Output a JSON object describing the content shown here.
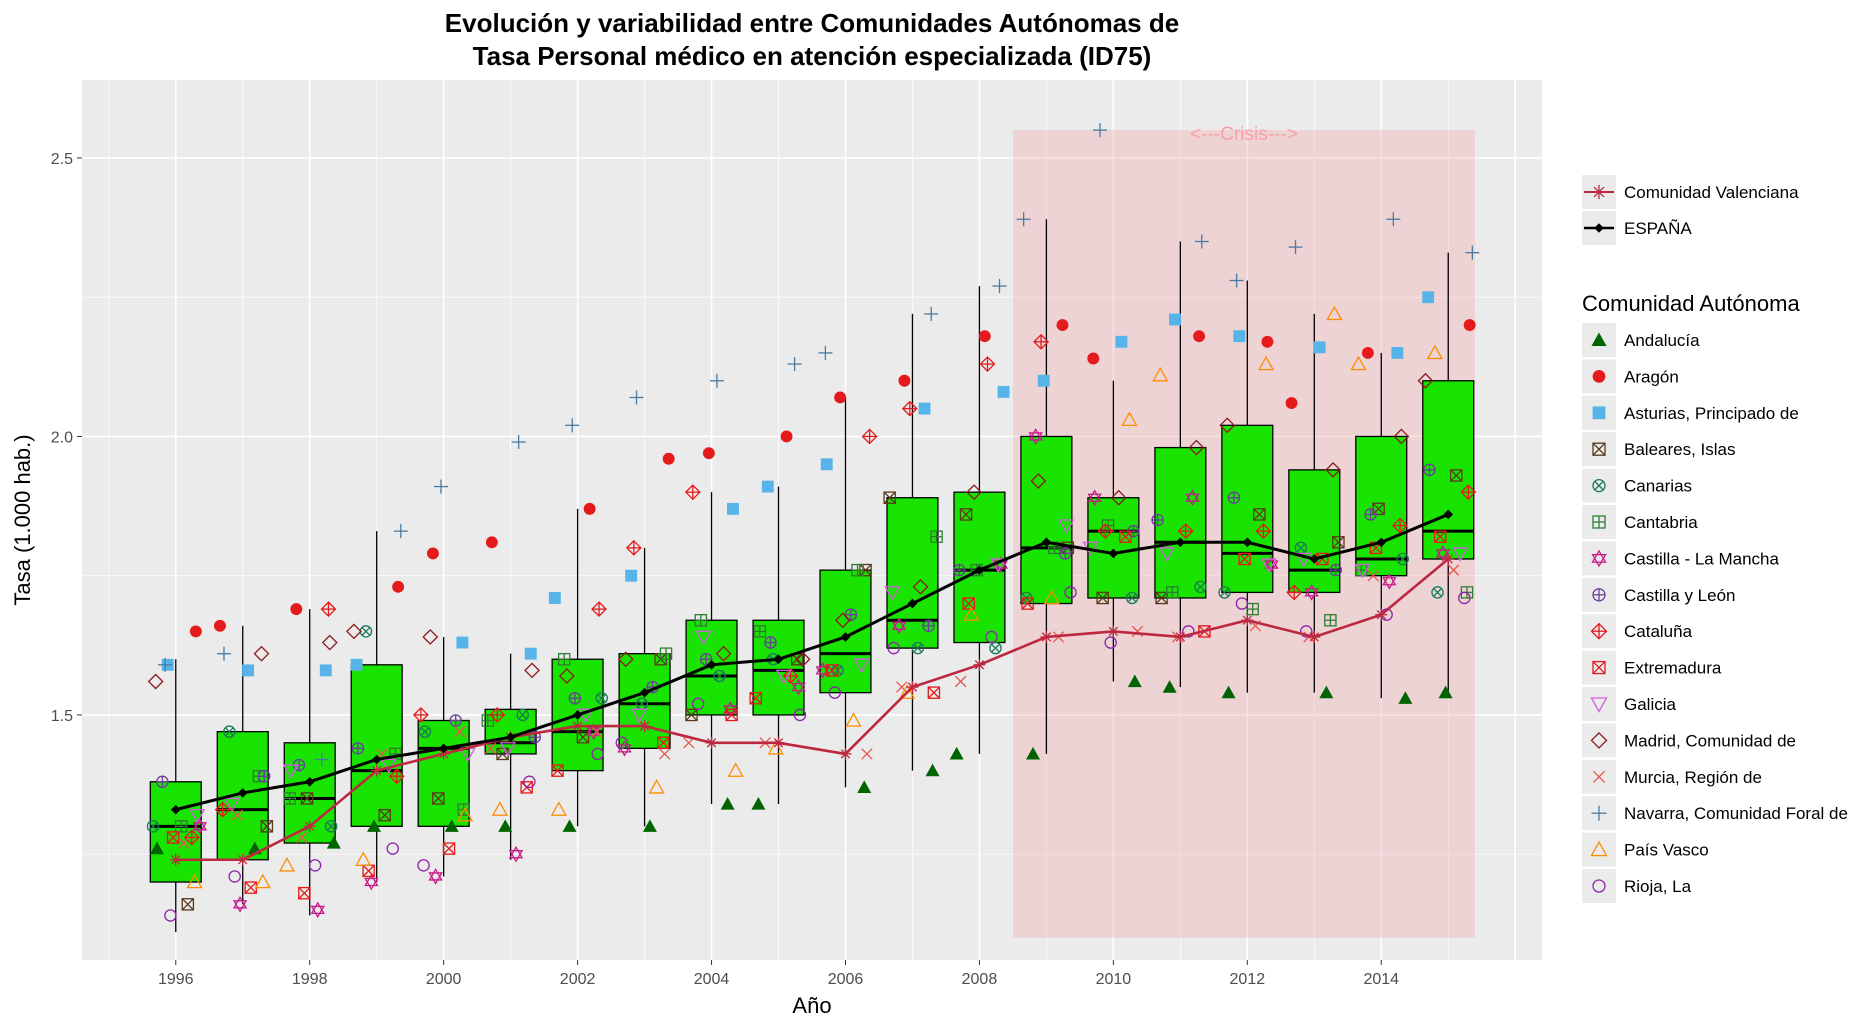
{
  "chart_data": {
    "type": "box",
    "title_line1": "Evolución y variabilidad entre Comunidades Autónomas de",
    "title_line2": "Tasa Personal médico en atención especializada (ID75)",
    "xlabel": "Año",
    "ylabel": "Tasa (1.000 hab.)",
    "xlim": [
      1994.6,
      2016.4
    ],
    "ylim": [
      1.06,
      2.64
    ],
    "x_ticks": [
      "1996",
      "1998",
      "2000",
      "2002",
      "2004",
      "2006",
      "2008",
      "2010",
      "2012",
      "2014"
    ],
    "y_ticks": [
      "1.5",
      "2.0",
      "2.5"
    ],
    "annotation": {
      "text": "<---Crisis--->",
      "x_from": 2008.5,
      "x_to": 2015.4,
      "y_from": 1.1,
      "y_to": 2.55,
      "color": "#f8a0a8"
    },
    "box_fill": "#19e300",
    "years": [
      1996,
      1997,
      1998,
      1999,
      2000,
      2001,
      2002,
      2003,
      2004,
      2005,
      2006,
      2007,
      2008,
      2009,
      2010,
      2011,
      2012,
      2013,
      2014,
      2015
    ],
    "boxes": [
      {
        "year": 1996,
        "lower": 1.11,
        "q1": 1.2,
        "median": 1.3,
        "q3": 1.38,
        "upper": 1.6
      },
      {
        "year": 1997,
        "lower": 1.16,
        "q1": 1.24,
        "median": 1.33,
        "q3": 1.47,
        "upper": 1.66
      },
      {
        "year": 1998,
        "lower": 1.14,
        "q1": 1.27,
        "median": 1.35,
        "q3": 1.45,
        "upper": 1.69
      },
      {
        "year": 1999,
        "lower": 1.2,
        "q1": 1.3,
        "median": 1.4,
        "q3": 1.59,
        "upper": 1.83
      },
      {
        "year": 2000,
        "lower": 1.21,
        "q1": 1.3,
        "median": 1.44,
        "q3": 1.49,
        "upper": 1.64
      },
      {
        "year": 2001,
        "lower": 1.24,
        "q1": 1.43,
        "median": 1.45,
        "q3": 1.51,
        "upper": 1.61
      },
      {
        "year": 2002,
        "lower": 1.3,
        "q1": 1.4,
        "median": 1.47,
        "q3": 1.6,
        "upper": 1.87
      },
      {
        "year": 2003,
        "lower": 1.3,
        "q1": 1.44,
        "median": 1.52,
        "q3": 1.61,
        "upper": 1.8
      },
      {
        "year": 2004,
        "lower": 1.34,
        "q1": 1.5,
        "median": 1.57,
        "q3": 1.67,
        "upper": 1.9
      },
      {
        "year": 2005,
        "lower": 1.34,
        "q1": 1.5,
        "median": 1.58,
        "q3": 1.67,
        "upper": 1.91
      },
      {
        "year": 2006,
        "lower": 1.37,
        "q1": 1.54,
        "median": 1.61,
        "q3": 1.76,
        "upper": 2.07
      },
      {
        "year": 2007,
        "lower": 1.4,
        "q1": 1.62,
        "median": 1.67,
        "q3": 1.89,
        "upper": 2.22
      },
      {
        "year": 2008,
        "lower": 1.43,
        "q1": 1.63,
        "median": 1.76,
        "q3": 1.9,
        "upper": 2.27
      },
      {
        "year": 2009,
        "lower": 1.43,
        "q1": 1.7,
        "median": 1.8,
        "q3": 2.0,
        "upper": 2.39
      },
      {
        "year": 2010,
        "lower": 1.56,
        "q1": 1.71,
        "median": 1.83,
        "q3": 1.89,
        "upper": 2.1
      },
      {
        "year": 2011,
        "lower": 1.55,
        "q1": 1.71,
        "median": 1.81,
        "q3": 1.98,
        "upper": 2.35
      },
      {
        "year": 2012,
        "lower": 1.54,
        "q1": 1.72,
        "median": 1.79,
        "q3": 2.02,
        "upper": 2.28
      },
      {
        "year": 2013,
        "lower": 1.54,
        "q1": 1.72,
        "median": 1.76,
        "q3": 1.94,
        "upper": 2.22
      },
      {
        "year": 2014,
        "lower": 1.53,
        "q1": 1.75,
        "median": 1.78,
        "q3": 2.0,
        "upper": 2.15
      },
      {
        "year": 2015,
        "lower": 1.54,
        "q1": 1.78,
        "median": 1.83,
        "q3": 2.1,
        "upper": 2.33
      }
    ],
    "highlight_series": [
      {
        "name": "Comunidad Valenciana",
        "color": "#bd2840",
        "shape": "asterisk",
        "values": [
          1.24,
          1.24,
          1.3,
          1.4,
          1.43,
          1.46,
          1.48,
          1.48,
          1.45,
          1.45,
          1.43,
          1.55,
          1.59,
          1.64,
          1.65,
          1.64,
          1.67,
          1.64,
          1.68,
          1.78
        ]
      },
      {
        "name": "ESPAÑA",
        "color": "#000000",
        "shape": "diamond",
        "values": [
          1.33,
          1.36,
          1.38,
          1.42,
          1.44,
          1.46,
          1.5,
          1.54,
          1.59,
          1.6,
          1.64,
          1.7,
          1.76,
          1.81,
          1.79,
          1.81,
          1.81,
          1.78,
          1.81,
          1.86
        ]
      }
    ],
    "legend_title": "Comunidad Autónoma",
    "series": [
      {
        "name": "Andalucía",
        "color": "#006400",
        "shape": "triangle-filled",
        "values": [
          1.26,
          1.26,
          1.27,
          1.3,
          1.3,
          1.3,
          1.3,
          1.3,
          1.34,
          1.34,
          1.37,
          1.4,
          1.43,
          1.43,
          1.56,
          1.55,
          1.54,
          1.54,
          1.53,
          1.54
        ]
      },
      {
        "name": "Aragón",
        "color": "#e41a1c",
        "shape": "circle-filled",
        "values": [
          1.65,
          1.66,
          1.69,
          1.73,
          1.79,
          1.81,
          1.87,
          1.96,
          1.97,
          2.0,
          2.07,
          2.1,
          2.18,
          2.2,
          2.14,
          2.18,
          2.17,
          2.06,
          2.15,
          2.2
        ]
      },
      {
        "name": "Asturias, Principado de",
        "color": "#56b4e9",
        "shape": "square-filled",
        "values": [
          1.59,
          1.58,
          1.58,
          1.59,
          1.63,
          1.61,
          1.71,
          1.75,
          1.87,
          1.91,
          1.95,
          2.05,
          2.08,
          2.1,
          2.17,
          2.21,
          2.18,
          2.16,
          2.15,
          2.25
        ]
      },
      {
        "name": "Baleares, Islas",
        "color": "#5a3a1a",
        "shape": "square-x",
        "values": [
          1.16,
          1.3,
          1.35,
          1.32,
          1.35,
          1.43,
          1.46,
          1.6,
          1.5,
          1.6,
          1.76,
          1.89,
          1.86,
          1.8,
          1.71,
          1.71,
          1.86,
          1.81,
          1.87,
          1.93
        ]
      },
      {
        "name": "Canarias",
        "color": "#1a7a5a",
        "shape": "circle-x",
        "values": [
          1.3,
          1.47,
          1.3,
          1.65,
          1.47,
          1.5,
          1.53,
          1.52,
          1.57,
          1.6,
          1.58,
          1.62,
          1.62,
          1.71,
          1.71,
          1.73,
          1.72,
          1.8,
          1.78,
          1.72
        ]
      },
      {
        "name": "Cantabria",
        "color": "#2e7d32",
        "shape": "square-plus",
        "values": [
          1.3,
          1.39,
          1.35,
          1.43,
          1.33,
          1.49,
          1.6,
          1.61,
          1.67,
          1.65,
          1.76,
          1.82,
          1.76,
          1.8,
          1.84,
          1.72,
          1.69,
          1.67,
          1.76,
          1.72
        ]
      },
      {
        "name": "Castilla - La Mancha",
        "color": "#c51b8a",
        "shape": "star-david",
        "values": [
          1.3,
          1.16,
          1.15,
          1.2,
          1.21,
          1.25,
          1.47,
          1.44,
          1.51,
          1.55,
          1.58,
          1.66,
          1.77,
          2.0,
          1.89,
          1.89,
          1.77,
          1.72,
          1.74,
          1.79
        ]
      },
      {
        "name": "Castilla y León",
        "color": "#6a3d9a",
        "shape": "circle-plus",
        "values": [
          1.38,
          1.39,
          1.41,
          1.44,
          1.49,
          1.46,
          1.53,
          1.55,
          1.6,
          1.63,
          1.68,
          1.66,
          1.76,
          1.79,
          1.83,
          1.85,
          1.89,
          1.76,
          1.86,
          1.94
        ]
      },
      {
        "name": "Cataluña",
        "color": "#e41a1c",
        "shape": "diamond-plus",
        "values": [
          1.28,
          1.33,
          1.69,
          1.39,
          1.5,
          1.5,
          1.69,
          1.8,
          1.9,
          1.57,
          2.0,
          2.05,
          2.13,
          2.17,
          1.83,
          1.83,
          1.83,
          1.72,
          1.84,
          1.9
        ]
      },
      {
        "name": "Extremadura",
        "color": "#e41a1c",
        "shape": "square-x",
        "values": [
          1.28,
          1.19,
          1.18,
          1.22,
          1.26,
          1.37,
          1.4,
          1.45,
          1.5,
          1.53,
          1.58,
          1.54,
          1.7,
          1.7,
          1.82,
          1.65,
          1.78,
          1.78,
          1.8,
          1.82
        ]
      },
      {
        "name": "Galicia",
        "color": "#d060e0",
        "shape": "triangle-down",
        "values": [
          1.32,
          1.34,
          1.4,
          1.41,
          1.43,
          1.44,
          1.5,
          1.5,
          1.64,
          1.57,
          1.59,
          1.72,
          1.77,
          1.84,
          1.8,
          1.79,
          1.77,
          1.78,
          1.76,
          1.79
        ]
      },
      {
        "name": "Madrid, Comunidad de",
        "color": "#8b1a1a",
        "shape": "diamond",
        "values": [
          1.56,
          1.61,
          1.63,
          1.65,
          1.64,
          1.58,
          1.57,
          1.6,
          1.61,
          1.6,
          1.67,
          1.73,
          1.9,
          1.92,
          1.89,
          1.98,
          2.02,
          1.94,
          2.0,
          2.1
        ]
      },
      {
        "name": "Murcia, Región de",
        "color": "#e8554f",
        "shape": "cross",
        "values": [
          1.27,
          1.32,
          1.28,
          1.43,
          1.47,
          1.44,
          1.47,
          1.43,
          1.45,
          1.45,
          1.43,
          1.55,
          1.56,
          1.64,
          1.65,
          1.64,
          1.66,
          1.64,
          1.75,
          1.76
        ]
      },
      {
        "name": "Navarra, Comunidad Foral de",
        "color": "#4a7aa0",
        "shape": "plus",
        "values": [
          1.59,
          1.61,
          1.42,
          1.83,
          1.91,
          1.99,
          2.02,
          2.07,
          2.1,
          2.13,
          2.15,
          2.22,
          2.27,
          2.39,
          2.55,
          2.35,
          2.28,
          2.34,
          2.39,
          2.33
        ]
      },
      {
        "name": "País Vasco",
        "color": "#ff8c00",
        "shape": "triangle",
        "values": [
          1.2,
          1.2,
          1.23,
          1.24,
          1.32,
          1.33,
          1.33,
          1.37,
          1.4,
          1.44,
          1.49,
          1.54,
          1.68,
          1.71,
          2.03,
          2.11,
          2.13,
          2.22,
          2.13,
          2.15
        ]
      },
      {
        "name": "Rioja, La",
        "color": "#8e24aa",
        "shape": "circle",
        "values": [
          1.14,
          1.21,
          1.23,
          1.26,
          1.23,
          1.38,
          1.43,
          1.45,
          1.52,
          1.5,
          1.54,
          1.62,
          1.64,
          1.72,
          1.63,
          1.65,
          1.7,
          1.65,
          1.68,
          1.71
        ]
      }
    ]
  }
}
